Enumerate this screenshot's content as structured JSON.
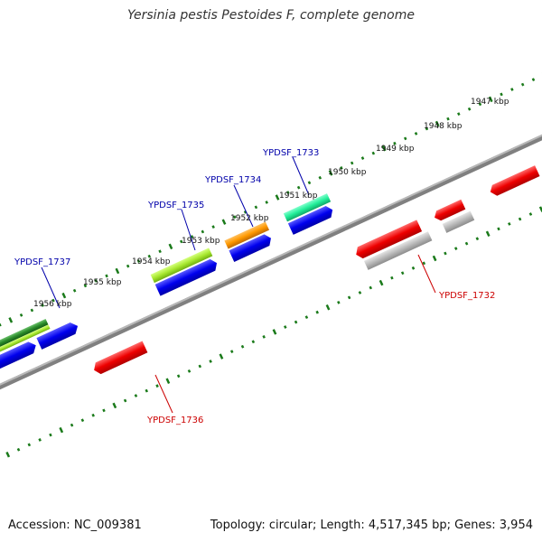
{
  "title": "Yersinia pestis Pestoides F, complete genome",
  "footer": {
    "accession": "Accession: NC_009381",
    "summary": "Topology: circular; Length: 4,517,345 bp; Genes: 3,954"
  },
  "colors": {
    "backbone": "#808080",
    "ticks": "#1a7a1a",
    "forward_label": "#0000aa",
    "reverse_label": "#cc0000",
    "forward_cds": "#0000ee",
    "reverse_cds": "#ee0000"
  },
  "scale_labels": [
    "1947 kbp",
    "1948 kbp",
    "1949 kbp",
    "1950 kbp",
    "1951 kbp",
    "1952 kbp",
    "1953 kbp",
    "1954 kbp",
    "1955 kbp",
    "1956 kbp"
  ],
  "gene_labels": {
    "forward": [
      "YPDSF_1733",
      "YPDSF_1734",
      "YPDSF_1735",
      "YPDSF_1737"
    ],
    "reverse": [
      "YPDSF_1732",
      "YPDSF_1736"
    ]
  }
}
